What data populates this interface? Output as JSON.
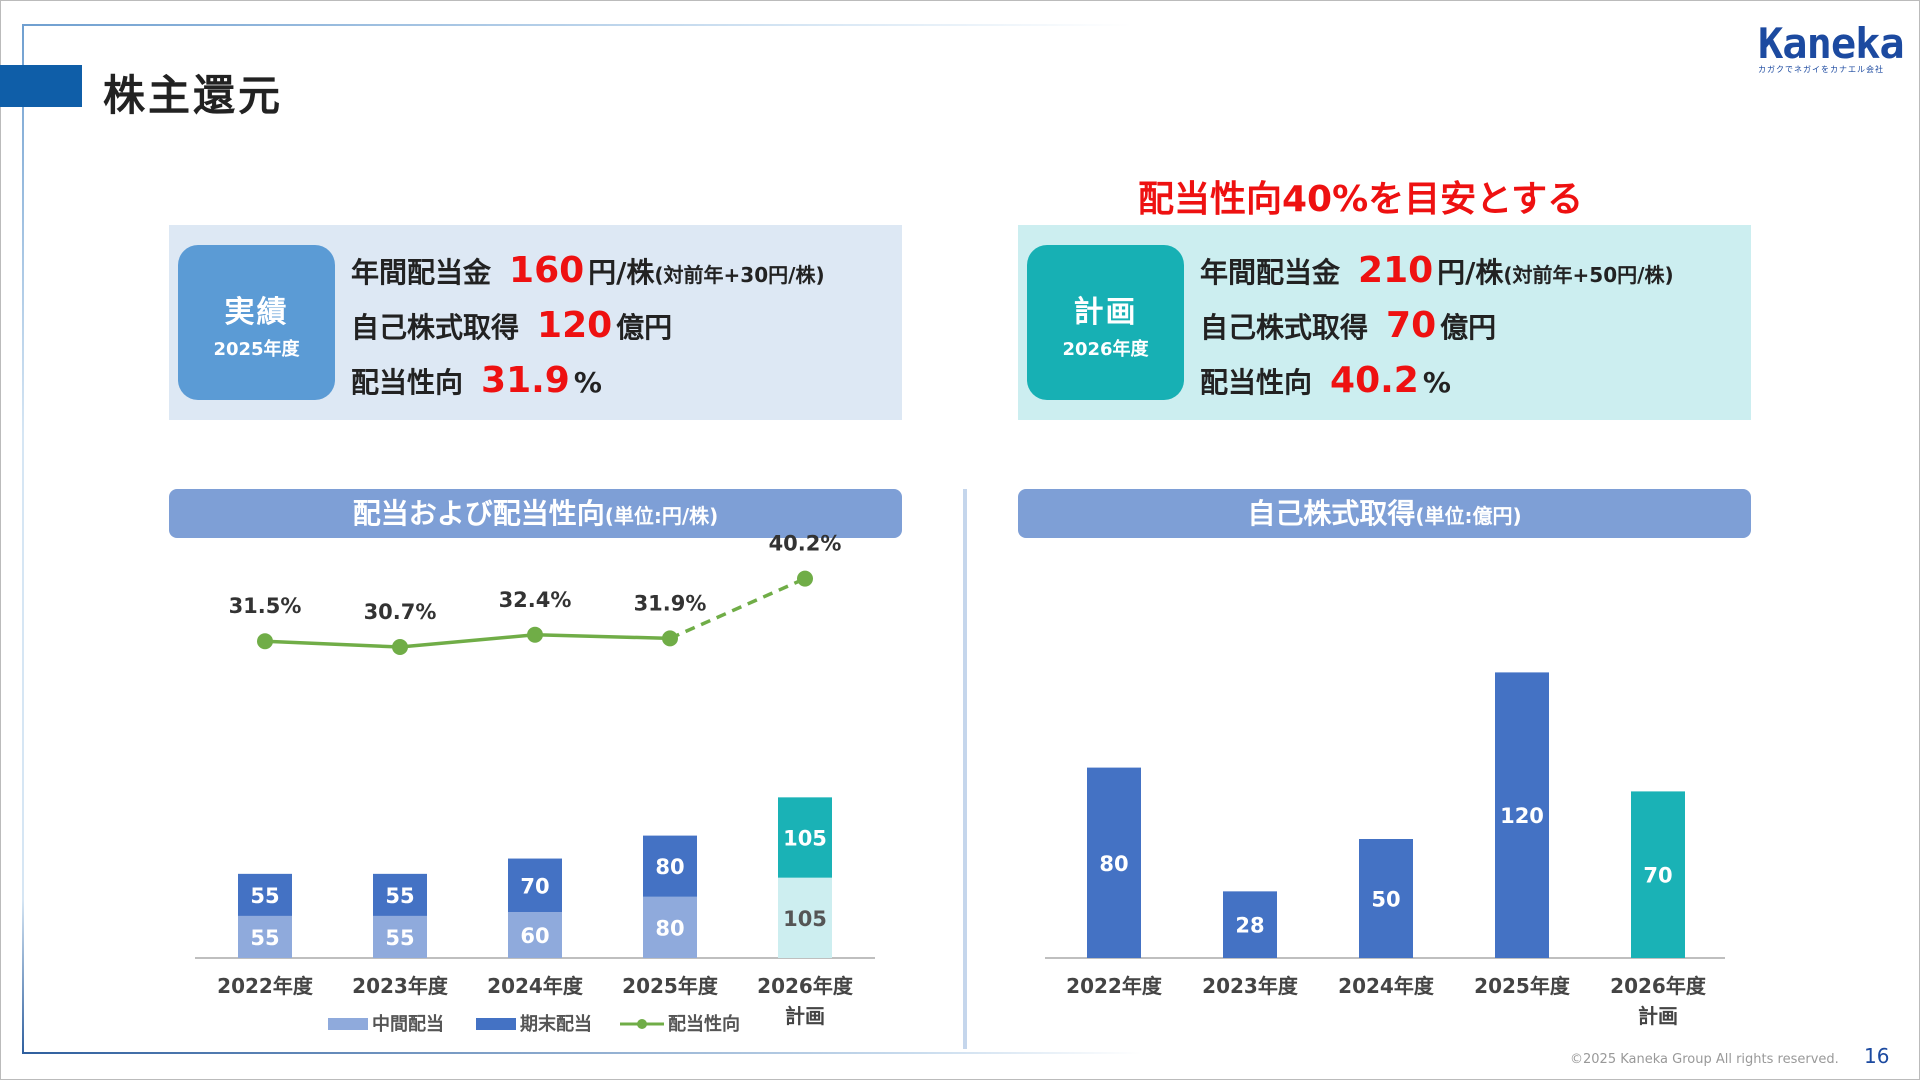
{
  "title": "株主還元",
  "logo": {
    "word": "Kaneka",
    "sub": "カガクでネガイをカナエル会社"
  },
  "headline": "配当性向40%を目安とする",
  "actual": {
    "badge_label": "実績",
    "badge_year": "2025年度",
    "dividend_label": "年間配当金",
    "dividend_value": "160",
    "dividend_unit": "円/株",
    "dividend_note": "(対前年+30円/株)",
    "buyback_label": "自己株式取得",
    "buyback_value": "120",
    "buyback_unit": "億円",
    "payout_label": "配当性向",
    "payout_value": "31.9",
    "payout_unit": "%"
  },
  "plan": {
    "badge_label": "計画",
    "badge_year": "2026年度",
    "dividend_label": "年間配当金",
    "dividend_value": "210",
    "dividend_unit": "円/株",
    "dividend_note": "(対前年+50円/株)",
    "buyback_label": "自己株式取得",
    "buyback_value": "70",
    "buyback_unit": "億円",
    "payout_label": "配当性向",
    "payout_value": "40.2",
    "payout_unit": "%"
  },
  "dividend_section": {
    "title": "配当および配当性向",
    "unit": "(単位:円/株)"
  },
  "buyback_section": {
    "title": "自己株式取得",
    "unit": "(単位:億円)"
  },
  "chart_data": [
    {
      "type": "bar",
      "stacked": true,
      "title": "配当および配当性向",
      "categories": [
        "2022年度",
        "2023年度",
        "2024年度",
        "2025年度",
        "2026年度\n計画"
      ],
      "series": [
        {
          "name": "中間配当",
          "values": [
            55,
            55,
            60,
            80,
            105
          ],
          "color": "#8faadc",
          "plan_color": "#cdeef0"
        },
        {
          "name": "期末配当",
          "values": [
            55,
            55,
            70,
            80,
            105
          ],
          "color": "#4472c4",
          "plan_color": "#1ab2b6"
        }
      ],
      "line_series": {
        "name": "配当性向",
        "values": [
          31.5,
          30.7,
          32.4,
          31.9,
          40.2
        ],
        "labels": [
          "31.5%",
          "30.7%",
          "32.4%",
          "31.9%",
          "40.2%"
        ],
        "color": "#70ad47",
        "dashed_last_segment": true
      },
      "legend": [
        "中間配当",
        "期末配当",
        "配当性向"
      ],
      "legend_position": "bottom",
      "grid": false
    },
    {
      "type": "bar",
      "title": "自己株式取得",
      "categories": [
        "2022年度",
        "2023年度",
        "2024年度",
        "2025年度",
        "2026年度\n計画"
      ],
      "values": [
        80,
        28,
        50,
        120,
        70
      ],
      "colors": [
        "#4472c4",
        "#4472c4",
        "#4472c4",
        "#4472c4",
        "#1ab2b6"
      ],
      "grid": false
    }
  ],
  "footer": "©2025 Kaneka Group All rights reserved.",
  "page_number": "16"
}
